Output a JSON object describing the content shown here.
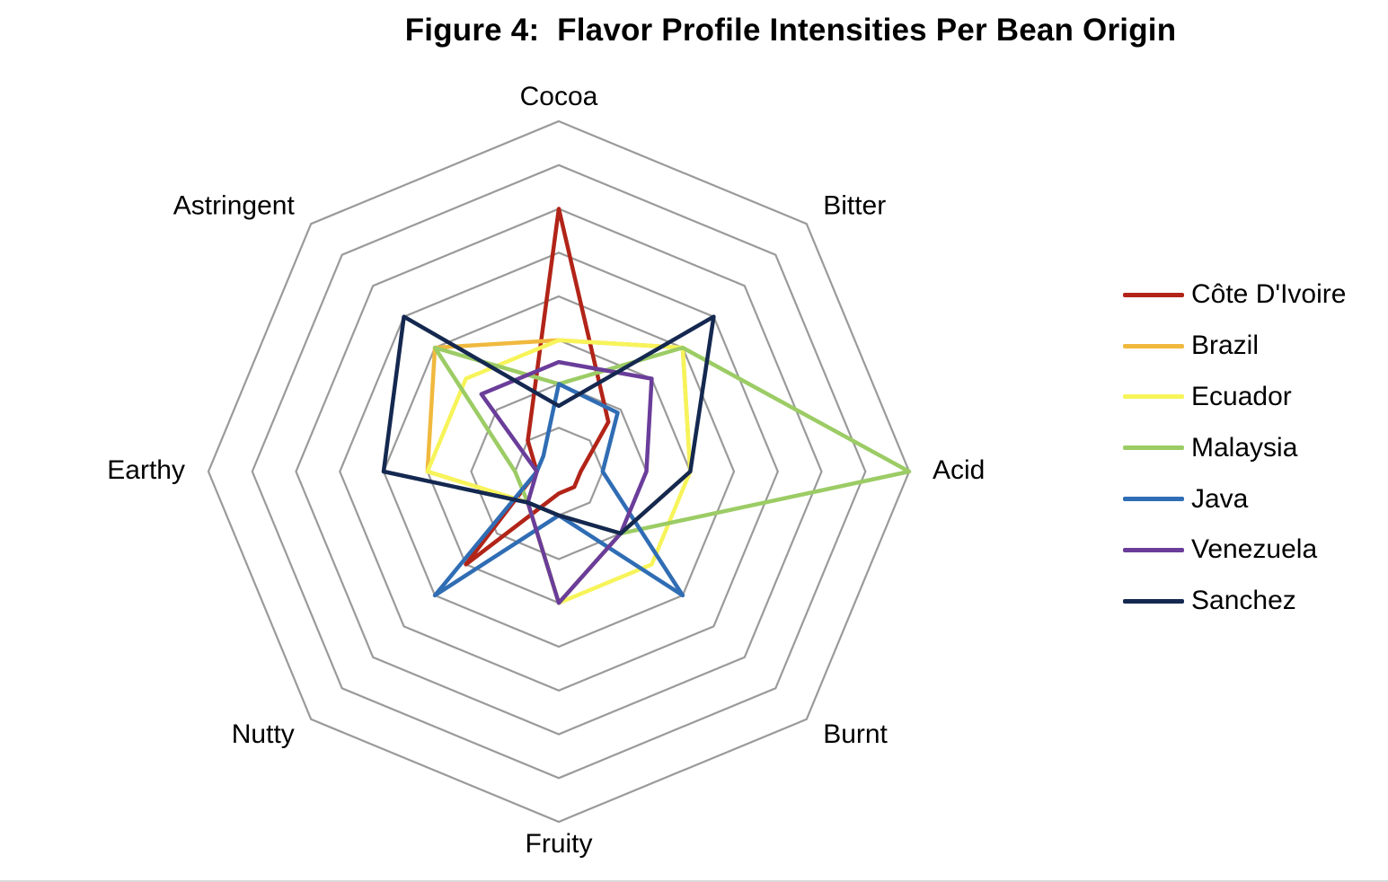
{
  "chart_data": {
    "type": "radar",
    "title": "Figure 4:  Flavor Profile Intensities Per Bean Origin",
    "axes": [
      "Cocoa",
      "Bitter",
      "Acid",
      "Burnt",
      "Fruity",
      "Nutty",
      "Earthy",
      "Astringent"
    ],
    "rlim": [
      0,
      8
    ],
    "rings": 8,
    "grid": true,
    "legend_position": "right",
    "series": [
      {
        "name": "Côte D'Ivoire",
        "color": "#b22418",
        "values": [
          6.0,
          1.6,
          0.5,
          0.5,
          0.5,
          3.0,
          0.5,
          1.0
        ]
      },
      {
        "name": "Brazil",
        "color": "#f0b93e",
        "values": [
          3.0,
          4.0,
          3.0,
          2.0,
          3.0,
          1.0,
          3.0,
          4.0
        ]
      },
      {
        "name": "Ecuador",
        "color": "#f7f45a",
        "values": [
          3.0,
          4.0,
          3.0,
          3.0,
          3.0,
          1.0,
          3.0,
          3.0
        ]
      },
      {
        "name": "Malaysia",
        "color": "#9ccc65",
        "values": [
          2.0,
          4.0,
          8.0,
          2.0,
          1.0,
          1.0,
          1.0,
          4.0
        ]
      },
      {
        "name": "Java",
        "color": "#2f6db4",
        "values": [
          2.0,
          1.9,
          1.0,
          4.0,
          1.0,
          4.0,
          0.5,
          0.5
        ]
      },
      {
        "name": "Venezuela",
        "color": "#6a3d9a",
        "values": [
          2.5,
          3.0,
          2.0,
          2.0,
          3.0,
          1.0,
          0.5,
          2.5
        ]
      },
      {
        "name": "Sanchez",
        "color": "#142850",
        "values": [
          1.5,
          5.0,
          3.0,
          2.0,
          1.0,
          1.0,
          4.0,
          5.0
        ]
      }
    ]
  }
}
